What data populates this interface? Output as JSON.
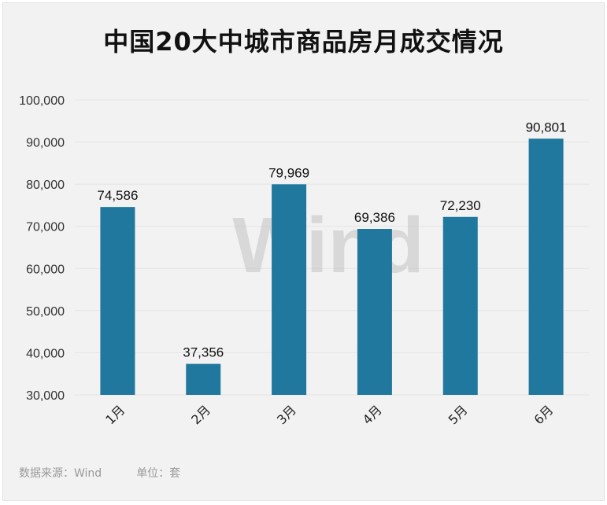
{
  "chart_data": {
    "type": "bar",
    "title": "中国20大中城市商品房月成交情况",
    "categories": [
      "1月",
      "2月",
      "3月",
      "4月",
      "5月",
      "6月"
    ],
    "values": [
      74586,
      37356,
      79969,
      69386,
      72230,
      90801
    ],
    "value_labels": [
      "74,586",
      "37,356",
      "79,969",
      "69,386",
      "72,230",
      "90,801"
    ],
    "ylim": [
      30000,
      100000
    ],
    "yticks": [
      "30,000",
      "40,000",
      "50,000",
      "60,000",
      "70,000",
      "80,000",
      "90,000",
      "100,000"
    ],
    "xlabel": "",
    "ylabel": "",
    "grid": true,
    "legend": "none",
    "bar_color": "#20789e"
  },
  "watermark": "Wind",
  "footer": {
    "source": "数据来源：Wind",
    "unit": "单位：套"
  }
}
